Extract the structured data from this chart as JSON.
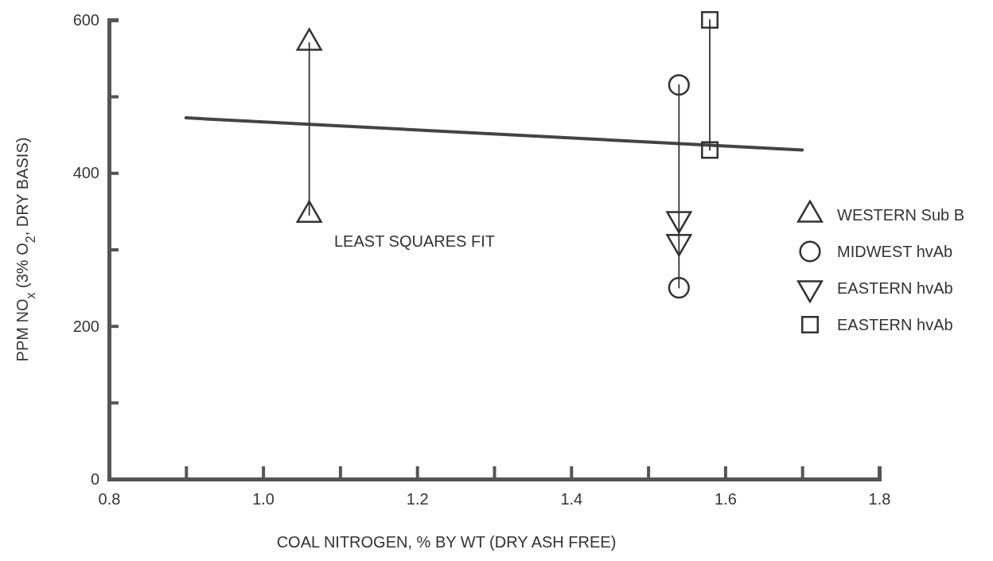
{
  "chart_data": {
    "type": "line",
    "xlabel": "COAL NITROGEN,  % BY WT (DRY ASH FREE)",
    "ylabel": "PPM NO$_{x}$ (3% O$_{2}$, DRY BASIS)",
    "xlim": [
      0.8,
      1.8
    ],
    "xticks": [
      0.8,
      {
        "value": 0.9,
        "label": null
      },
      {
        "value": 1.0,
        "label": "1.0"
      },
      {
        "value": 1.1,
        "label": null
      },
      1.2,
      {
        "value": 1.3,
        "label": null
      },
      1.4,
      {
        "value": 1.5,
        "label": null
      },
      1.6,
      {
        "value": 1.7,
        "label": null
      },
      1.8
    ],
    "ylim": [
      0,
      600
    ],
    "yticks": [
      0,
      {
        "value": 100,
        "label": null
      },
      200,
      {
        "value": 300,
        "label": null
      },
      400,
      {
        "value": 500,
        "label": null
      },
      600
    ],
    "grid": false,
    "legend": "right",
    "annotations": [
      "LEAST SQUARES FIT"
    ],
    "series": [
      {
        "name": "WESTERN Sub B",
        "color": "#333333",
        "marker": "triangle",
        "x": [
          1.06,
          1.06
        ],
        "values": [
          570,
          345
        ]
      },
      {
        "name": "MIDWEST hvAb",
        "color": "#333333",
        "marker": "circle",
        "x": [
          1.54,
          1.54
        ],
        "values": [
          515,
          250
        ]
      },
      {
        "name": "EASTERN hvAb",
        "type": "scatter",
        "color": "#333333",
        "marker": "triangle-down",
        "x": [
          1.54,
          1.54
        ],
        "values": [
          340,
          310
        ]
      },
      {
        "name": "EASTERN hvAb",
        "color": "#333333",
        "marker": "square",
        "x": [
          1.58,
          1.58
        ],
        "values": [
          600,
          430
        ]
      },
      {
        "color": "#444444",
        "marker": "none",
        "x": [
          0.9,
          1.7
        ],
        "values": [
          472,
          430
        ]
      }
    ]
  }
}
